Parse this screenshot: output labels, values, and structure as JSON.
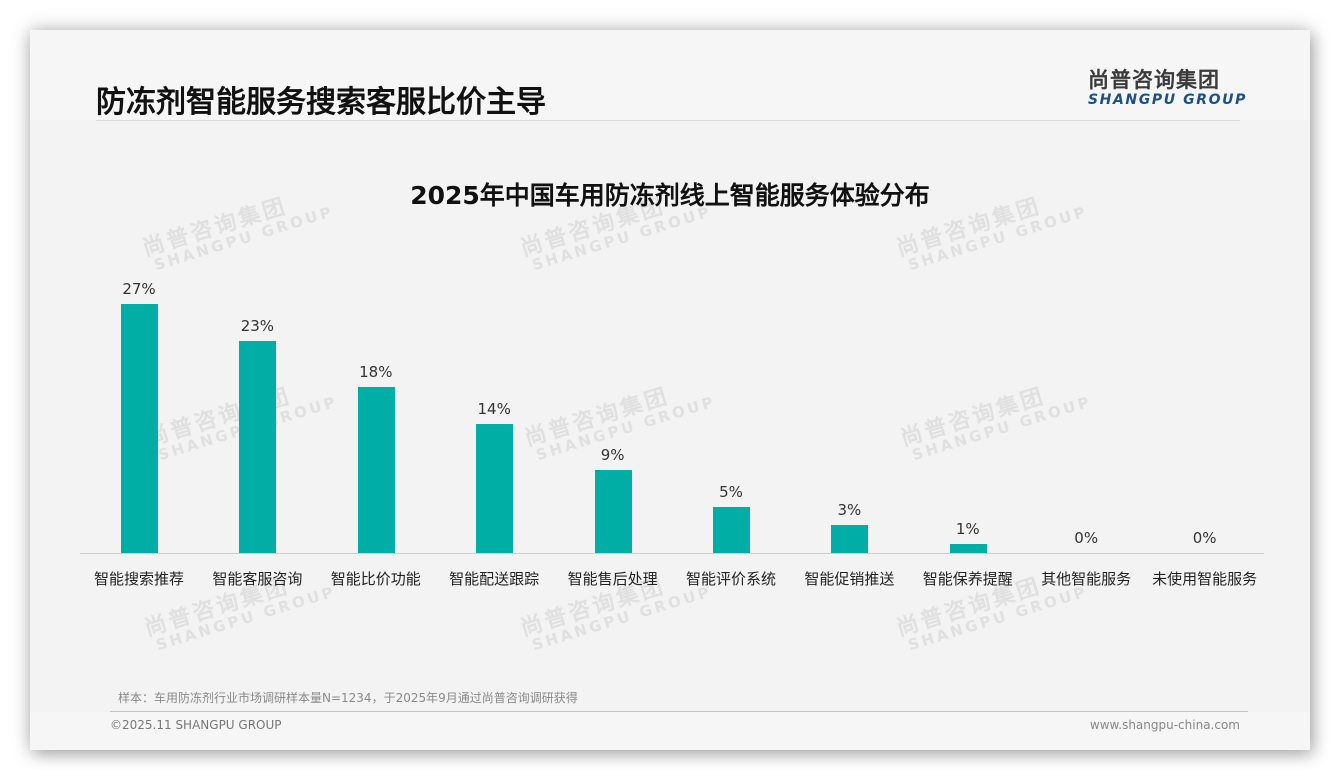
{
  "header": {
    "page_title": "防冻剂智能服务搜索客服比价主导",
    "logo_cn": "尚普咨询集团",
    "logo_en": "SHANGPU GROUP"
  },
  "watermark": {
    "cn": "尚普咨询集团",
    "en": "SHANGPU GROUP"
  },
  "colors": {
    "bar": "#00aea6",
    "logo_en": "#1e4f86",
    "background": "#f3f3f3"
  },
  "chart_data": {
    "type": "bar",
    "title": "2025年中国车用防冻剂线上智能服务体验分布",
    "xlabel": "",
    "ylabel": "",
    "ylim": [
      0,
      30
    ],
    "grid": false,
    "legend": null,
    "categories": [
      "智能搜索推荐",
      "智能客服咨询",
      "智能比价功能",
      "智能配送跟踪",
      "智能售后处理",
      "智能评价系统",
      "智能促销推送",
      "智能保养提醒",
      "其他智能服务",
      "未使用智能服务"
    ],
    "values": [
      27,
      23,
      18,
      14,
      9,
      5,
      3,
      1,
      0,
      0
    ],
    "value_labels": [
      "27%",
      "23%",
      "18%",
      "14%",
      "9%",
      "5%",
      "3%",
      "1%",
      "0%",
      "0%"
    ],
    "unit": "%"
  },
  "footer": {
    "note": "样本：车用防冻剂行业市场调研样本量N=1234，于2025年9月通过尚普咨询调研获得",
    "copyright": "©2025.11 SHANGPU GROUP",
    "website": "www.shangpu-china.com"
  }
}
